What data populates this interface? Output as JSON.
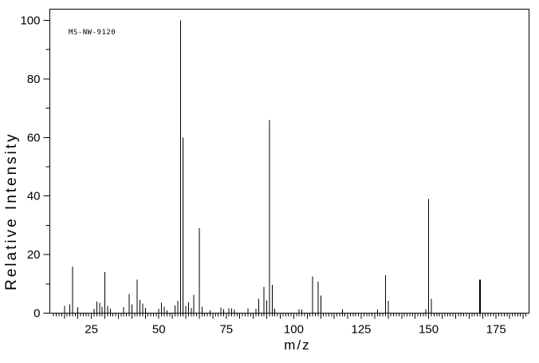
{
  "colors": {
    "line": "#000000",
    "background": "#ffffff",
    "text": "#000000"
  },
  "chart_data": {
    "type": "bar",
    "title": "MS-NW-9120",
    "xlabel": "m/z",
    "ylabel": "Relative Intensity",
    "xlim": [
      9.6,
      187.2
    ],
    "ylim": [
      0,
      100
    ],
    "x_major_ticks": [
      25,
      50,
      75,
      100,
      125,
      150,
      175
    ],
    "y_major_ticks": [
      0,
      20,
      40,
      60,
      80,
      100
    ],
    "x_minor_tick_step": 1,
    "x_medium_tick_step": 5,
    "y_minor_tick_step": 10,
    "grid": false,
    "legend": false,
    "bold_peak_mz": 169,
    "peaks": [
      [
        15,
        2.5
      ],
      [
        17,
        3
      ],
      [
        18,
        16
      ],
      [
        20,
        2
      ],
      [
        26,
        1.5
      ],
      [
        27,
        4
      ],
      [
        28,
        3.5
      ],
      [
        29,
        2.2
      ],
      [
        30,
        14
      ],
      [
        31,
        2.4
      ],
      [
        32,
        1.5
      ],
      [
        37,
        2
      ],
      [
        39,
        6.5
      ],
      [
        40,
        3
      ],
      [
        42,
        11.5
      ],
      [
        43,
        4.5
      ],
      [
        44,
        3.3
      ],
      [
        45,
        1.8
      ],
      [
        50,
        1.5
      ],
      [
        51,
        3.5
      ],
      [
        52,
        2.2
      ],
      [
        53,
        1
      ],
      [
        56,
        2.6
      ],
      [
        57,
        4.2
      ],
      [
        58,
        100
      ],
      [
        59,
        60
      ],
      [
        60,
        2.4
      ],
      [
        61,
        3.7
      ],
      [
        62,
        1.8
      ],
      [
        63,
        6.3
      ],
      [
        65,
        29
      ],
      [
        66,
        2.2
      ],
      [
        69,
        1
      ],
      [
        73,
        1.9
      ],
      [
        74,
        1.4
      ],
      [
        76,
        1.7
      ],
      [
        77,
        1.7
      ],
      [
        78,
        1.2
      ],
      [
        83,
        1.7
      ],
      [
        86,
        1.5
      ],
      [
        87,
        4.9
      ],
      [
        89,
        9
      ],
      [
        90,
        4.4
      ],
      [
        91,
        66
      ],
      [
        92,
        9.7
      ],
      [
        93,
        1.5
      ],
      [
        102,
        1.4
      ],
      [
        103,
        1.2
      ],
      [
        107,
        12.6
      ],
      [
        109,
        10.8
      ],
      [
        110,
        6
      ],
      [
        118,
        1.3
      ],
      [
        131,
        1.2
      ],
      [
        134,
        13
      ],
      [
        135,
        4.2
      ],
      [
        149,
        1.3
      ],
      [
        150,
        39
      ],
      [
        151,
        4.9
      ],
      [
        169,
        11.5
      ]
    ]
  }
}
